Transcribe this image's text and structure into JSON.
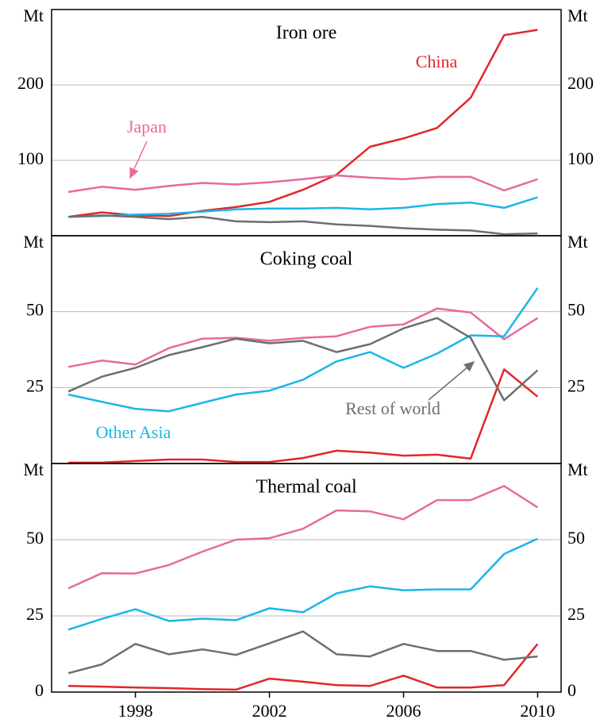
{
  "chart_data": [
    {
      "type": "line",
      "title": "Iron ore",
      "y_label": "Mt",
      "x": [
        1996,
        1997,
        1998,
        1999,
        2000,
        2001,
        2002,
        2003,
        2004,
        2005,
        2006,
        2007,
        2008,
        2009,
        2010
      ],
      "xlim": [
        1995.5,
        2010.7
      ],
      "ylim": [
        0,
        300
      ],
      "yticks": [
        100,
        200
      ],
      "grid": true,
      "series": [
        {
          "name": "China",
          "color": "#e3262b",
          "values": [
            25,
            31,
            27,
            26,
            33,
            38,
            45,
            61,
            81,
            118,
            129,
            143,
            183,
            266,
            273
          ]
        },
        {
          "name": "Japan",
          "color": "#e8699d",
          "values": [
            58,
            65,
            61,
            66,
            70,
            68,
            71,
            75,
            80,
            77,
            75,
            78,
            78,
            60,
            75
          ]
        },
        {
          "color": "#1ab6e8",
          "values": [
            25,
            26,
            28,
            29,
            32,
            35,
            36,
            36,
            37,
            35,
            37,
            42,
            44,
            37,
            51
          ]
        },
        {
          "color": "#6d6e70",
          "values": [
            25,
            27,
            25,
            22,
            25,
            19,
            18,
            19,
            15,
            13,
            10,
            8,
            7,
            2,
            3
          ]
        }
      ]
    },
    {
      "type": "line",
      "title": "Coking coal",
      "y_label": "Mt",
      "x": [
        1996,
        1997,
        1998,
        1999,
        2000,
        2001,
        2002,
        2003,
        2004,
        2005,
        2006,
        2007,
        2008,
        2009,
        2010
      ],
      "xlim": [
        1995.5,
        2010.7
      ],
      "ylim": [
        0,
        75
      ],
      "yticks": [
        25,
        50
      ],
      "grid": true,
      "series": [
        {
          "color": "#e3262b",
          "values": [
            0.3,
            0.3,
            0.8,
            1.3,
            1.3,
            0.5,
            0.5,
            1.8,
            4.2,
            3.6,
            2.6,
            2.9,
            1.6,
            31,
            22
          ]
        },
        {
          "color": "#e8699d",
          "values": [
            31.8,
            33.9,
            32.6,
            38,
            41.1,
            41.4,
            40.4,
            41.4,
            41.9,
            45,
            45.8,
            51,
            49.7,
            40.9,
            47.9
          ]
        },
        {
          "name": "Other Asia",
          "color": "#1ab6e8",
          "values": [
            22.7,
            20.3,
            18,
            17.2,
            20,
            22.7,
            24,
            27.6,
            33.6,
            36.7,
            31.5,
            36.2,
            42.2,
            41.9,
            57.8
          ]
        },
        {
          "name": "Rest of world",
          "color": "#6d6e70",
          "values": [
            23.7,
            28.6,
            31.5,
            35.7,
            38.3,
            41.1,
            39.6,
            40.4,
            36.7,
            39.3,
            44.5,
            47.9,
            41.4,
            20.8,
            30.7
          ]
        }
      ]
    },
    {
      "type": "line",
      "title": "Thermal coal",
      "y_label": "Mt",
      "x": [
        1996,
        1997,
        1998,
        1999,
        2000,
        2001,
        2002,
        2003,
        2004,
        2005,
        2006,
        2007,
        2008,
        2009,
        2010
      ],
      "xlim": [
        1995.5,
        2010.7
      ],
      "ylim": [
        0,
        75
      ],
      "yticks": [
        0,
        25,
        50
      ],
      "grid": true,
      "xticks": [
        1998,
        2002,
        2006,
        2010
      ],
      "series": [
        {
          "color": "#e3262b",
          "values": [
            2,
            1.8,
            1.5,
            1.3,
            1,
            0.8,
            4.4,
            3.4,
            2.3,
            2,
            5.4,
            1.5,
            1.5,
            2.3,
            15.8
          ]
        },
        {
          "color": "#e8699d",
          "values": [
            34,
            39,
            38.9,
            41.7,
            46.1,
            50,
            50.5,
            53.6,
            59.6,
            59.3,
            56.7,
            63,
            63,
            67.6,
            60.6
          ]
        },
        {
          "color": "#1ab6e8",
          "values": [
            20.5,
            24,
            27.2,
            23.3,
            24.1,
            23.6,
            27.5,
            26.2,
            32.4,
            34.7,
            33.4,
            33.7,
            33.7,
            45.3,
            50.3
          ]
        },
        {
          "color": "#6d6e70",
          "values": [
            6.2,
            9.1,
            15.8,
            12.4,
            14,
            12.2,
            16,
            19.9,
            12.4,
            11.7,
            15.8,
            13.5,
            13.5,
            10.6,
            11.7
          ]
        }
      ]
    }
  ]
}
